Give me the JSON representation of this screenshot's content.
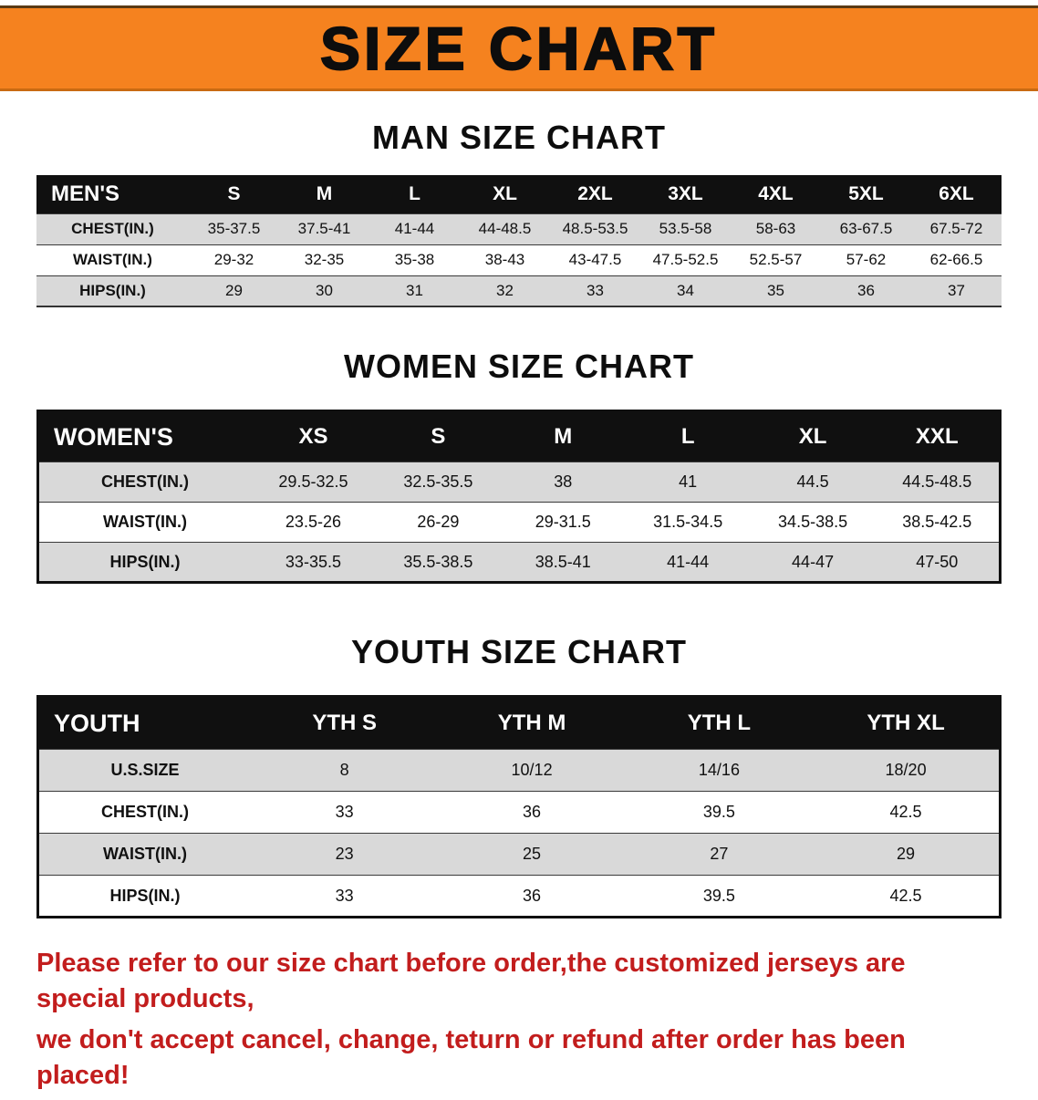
{
  "colors": {
    "banner_bg": "#F5821F",
    "table_header_bg": "#101010",
    "row_alt_bg": "#D9D9D9",
    "disclaimer_red": "#C21D1D"
  },
  "banner": {
    "title": "SIZE CHART"
  },
  "sections": [
    {
      "heading": "MAN SIZE CHART",
      "table": {
        "header": [
          "MEN'S",
          "S",
          "M",
          "L",
          "XL",
          "2XL",
          "3XL",
          "4XL",
          "5XL",
          "6XL"
        ],
        "rows": [
          [
            "CHEST(IN.)",
            "35-37.5",
            "37.5-41",
            "41-44",
            "44-48.5",
            "48.5-53.5",
            "53.5-58",
            "58-63",
            "63-67.5",
            "67.5-72"
          ],
          [
            "WAIST(IN.)",
            "29-32",
            "32-35",
            "35-38",
            "38-43",
            "43-47.5",
            "47.5-52.5",
            "52.5-57",
            "57-62",
            "62-66.5"
          ],
          [
            "HIPS(IN.)",
            "29",
            "30",
            "31",
            "32",
            "33",
            "34",
            "35",
            "36",
            "37"
          ]
        ]
      }
    },
    {
      "heading": "WOMEN SIZE CHART",
      "table": {
        "header": [
          "WOMEN'S",
          "XS",
          "S",
          "M",
          "L",
          "XL",
          "XXL"
        ],
        "rows": [
          [
            "CHEST(IN.)",
            "29.5-32.5",
            "32.5-35.5",
            "38",
            "41",
            "44.5",
            "44.5-48.5"
          ],
          [
            "WAIST(IN.)",
            "23.5-26",
            "26-29",
            "29-31.5",
            "31.5-34.5",
            "34.5-38.5",
            "38.5-42.5"
          ],
          [
            "HIPS(IN.)",
            "33-35.5",
            "35.5-38.5",
            "38.5-41",
            "41-44",
            "44-47",
            "47-50"
          ]
        ]
      }
    },
    {
      "heading": "YOUTH SIZE CHART",
      "table": {
        "header": [
          "YOUTH",
          "YTH S",
          "YTH M",
          "YTH L",
          "YTH XL"
        ],
        "rows": [
          [
            "U.S.SIZE",
            "8",
            "10/12",
            "14/16",
            "18/20"
          ],
          [
            "CHEST(IN.)",
            "33",
            "36",
            "39.5",
            "42.5"
          ],
          [
            "WAIST(IN.)",
            "23",
            "25",
            "27",
            "29"
          ],
          [
            "HIPS(IN.)",
            "33",
            "36",
            "39.5",
            "42.5"
          ]
        ]
      }
    }
  ],
  "footer": {
    "line1": "Please refer to our size chart before order,the customized jerseys are special products,",
    "line2": "we don't accept cancel, change, teturn or refund after order has been placed!"
  }
}
